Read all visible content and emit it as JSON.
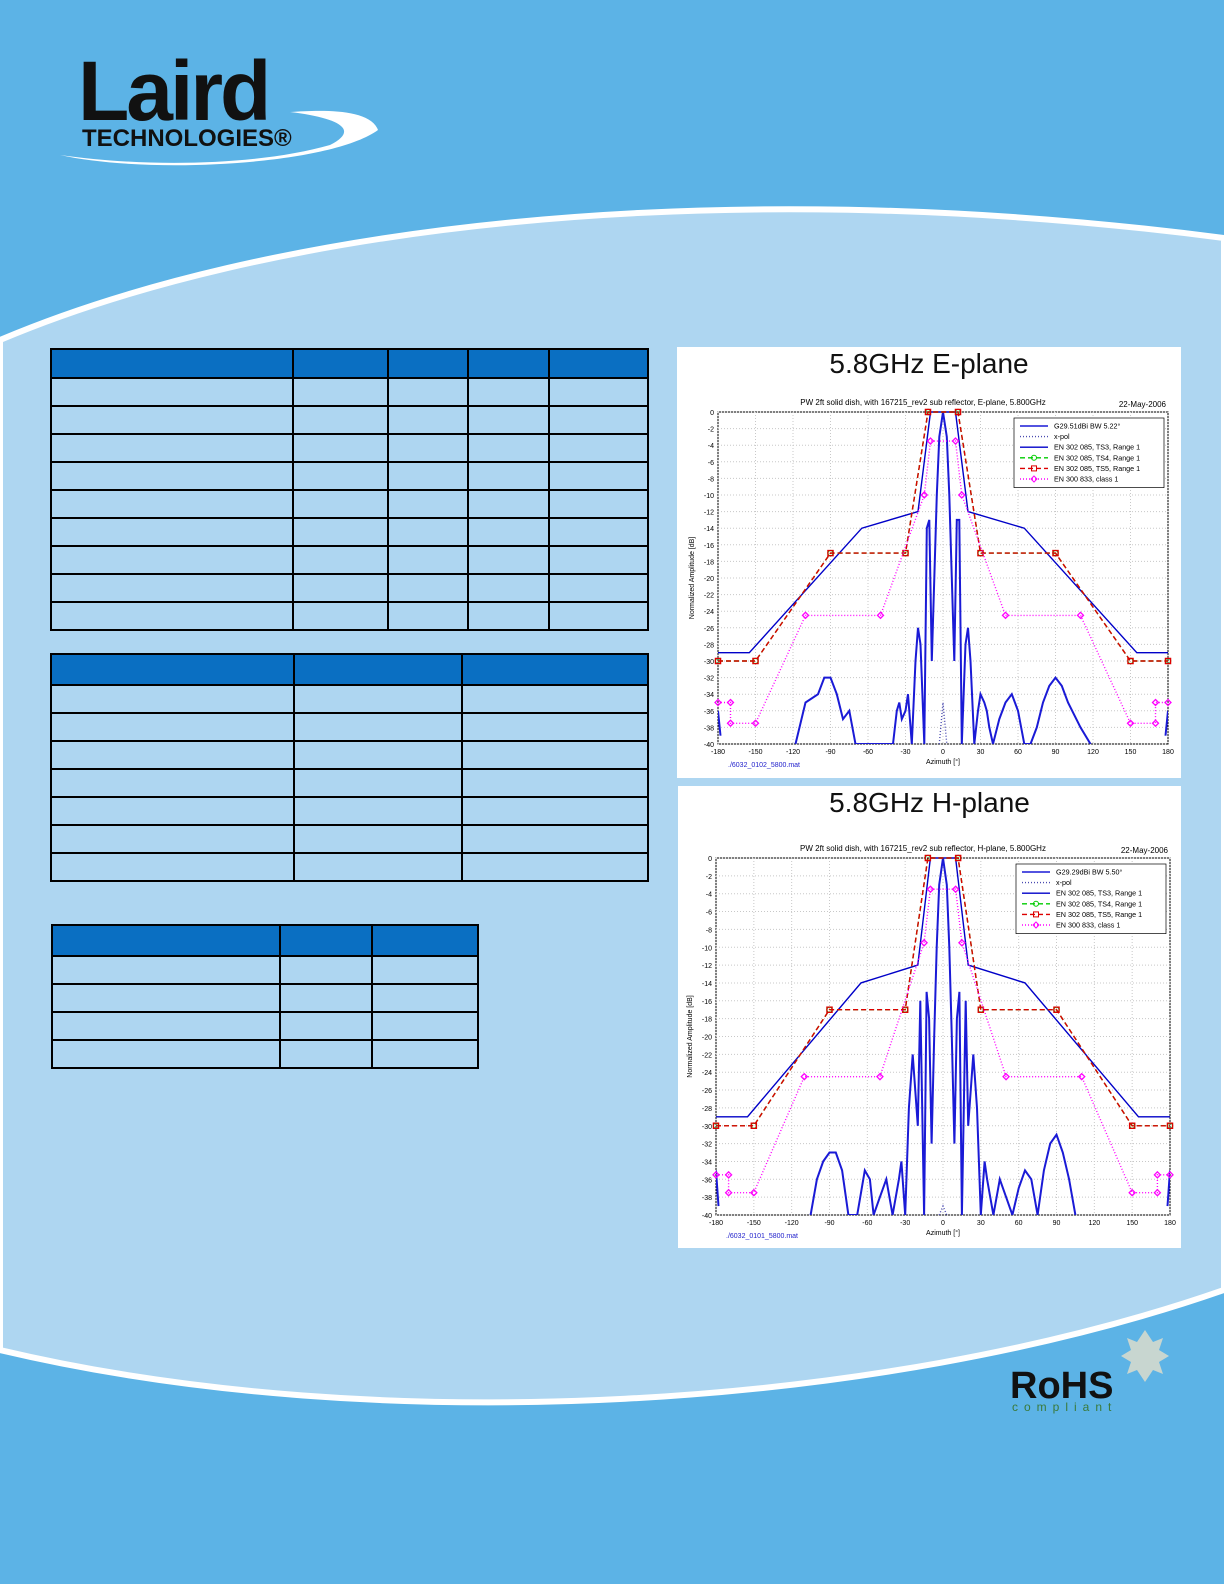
{
  "header": {
    "brand": "Laird",
    "tagline": "TECHNOLOGIES®"
  },
  "chart_data": [
    {
      "type": "line",
      "title": "5.8GHz E-plane",
      "subtitle": "PW 2ft solid dish, with 167215_rev2 sub reflector, E-plane,  5.800GHz",
      "date": "22-May-2006",
      "ylabel": "Normalized Amplitude [dB]",
      "xlabel": "Azimuth [°]",
      "source": "./6032_0102_5800.mat",
      "xlim": [
        -180,
        180
      ],
      "ylim": [
        -40,
        0
      ],
      "xticks": [
        -180,
        -150,
        -120,
        -90,
        -60,
        -30,
        0,
        30,
        60,
        90,
        120,
        150,
        180
      ],
      "yticks": [
        0,
        -2,
        -4,
        -6,
        -8,
        -10,
        -12,
        -14,
        -16,
        -18,
        -20,
        -22,
        -24,
        -26,
        -28,
        -30,
        -32,
        -34,
        -36,
        -38,
        -40
      ],
      "grid": true,
      "legend": "upper right",
      "series": [
        {
          "name": "G29.51dBi BW 5.22°",
          "color": "#1a1ad6",
          "style": "solid",
          "x": [
            -180,
            -178,
            -176,
            -118,
            -110,
            -100,
            -95,
            -90,
            -85,
            -80,
            -75,
            -70,
            -40,
            -37,
            -35,
            -33,
            -30,
            -28,
            -25,
            -22,
            -20,
            -18,
            -15,
            -13,
            -11,
            -9,
            -7,
            -5,
            -3,
            0,
            3,
            5,
            7,
            9,
            11,
            13,
            15,
            18,
            20,
            22,
            25,
            28,
            30,
            33,
            35,
            37,
            40,
            45,
            50,
            55,
            60,
            65,
            70,
            75,
            80,
            85,
            90,
            95,
            100,
            110,
            118,
            176,
            178,
            180
          ],
          "values": [
            -36,
            -39,
            null,
            -40,
            -35,
            -34,
            -32,
            -32,
            -34,
            -37,
            -36,
            -40,
            -40,
            -36,
            -35,
            -37,
            -36,
            -34,
            -40,
            -30,
            -26,
            -28,
            -40,
            -14,
            -13,
            -30,
            -20,
            -10,
            -3,
            0,
            -3,
            -10,
            -20,
            -30,
            -13,
            -13,
            -40,
            -28,
            -26,
            -30,
            -40,
            -36,
            -34,
            -35,
            -36,
            -38,
            -40,
            -37,
            -35,
            -34,
            -36,
            -40,
            -40,
            -38,
            -35,
            -33,
            -32,
            -33,
            -35,
            -38,
            -40,
            null,
            -39,
            -36
          ]
        },
        {
          "name": "x-pol",
          "color": "#4a4ab0",
          "style": "dotted",
          "x": [
            -3,
            0,
            3
          ],
          "values": [
            -40,
            -35,
            -40
          ]
        },
        {
          "name": "EN 302 085, TS3, Range 1",
          "color": "#0000c8",
          "style": "solid",
          "x": [
            -180,
            -155,
            -65,
            -20,
            -10,
            10,
            20,
            65,
            155,
            180
          ],
          "values": [
            -29,
            -29,
            -14,
            -12,
            0,
            0,
            -12,
            -14,
            -29,
            -29
          ]
        },
        {
          "name": "EN 302 085, TS4, Range 1",
          "color": "#00cc00",
          "style": "dashed",
          "marker": "circle",
          "x": [
            -180,
            -150,
            -90,
            -30,
            -12,
            12,
            30,
            90,
            150,
            180
          ],
          "values": [
            -30,
            -30,
            -17,
            -17,
            0,
            0,
            -17,
            -17,
            -30,
            -30
          ]
        },
        {
          "name": "EN 302 085, TS5, Range 1",
          "color": "#dd0000",
          "style": "dashed",
          "marker": "square",
          "x": [
            -180,
            -150,
            -90,
            -30,
            -12,
            12,
            30,
            90,
            150,
            180
          ],
          "values": [
            -30,
            -30,
            -17,
            -17,
            0,
            0,
            -17,
            -17,
            -30,
            -30
          ]
        },
        {
          "name": "EN 300 833, class 1",
          "color": "#ff00ff",
          "style": "dotted",
          "marker": "diamond",
          "x": [
            -180,
            -170,
            -170,
            -150,
            -110,
            -50,
            -15,
            -10,
            10,
            15,
            50,
            110,
            150,
            170,
            170,
            180
          ],
          "values": [
            -35,
            -35,
            -37.5,
            -37.5,
            -24.5,
            -24.5,
            -10,
            -3.5,
            -3.5,
            -10,
            -24.5,
            -24.5,
            -37.5,
            -37.5,
            -35,
            -35
          ]
        }
      ]
    },
    {
      "type": "line",
      "title": "5.8GHz H-plane",
      "subtitle": "PW 2ft solid dish, with 167215_rev2 sub reflector, H-plane,  5.800GHz",
      "date": "22-May-2006",
      "ylabel": "Normalized Amplitude [dB]",
      "xlabel": "Azimuth [°]",
      "source": "./6032_0101_5800.mat",
      "xlim": [
        -180,
        180
      ],
      "ylim": [
        -40,
        0
      ],
      "xticks": [
        -180,
        -150,
        -120,
        -90,
        -60,
        -30,
        0,
        30,
        60,
        90,
        120,
        150,
        180
      ],
      "yticks": [
        0,
        -2,
        -4,
        -6,
        -8,
        -10,
        -12,
        -14,
        -16,
        -18,
        -20,
        -22,
        -24,
        -26,
        -28,
        -30,
        -32,
        -34,
        -36,
        -38,
        -40
      ],
      "grid": true,
      "legend": "upper right",
      "series": [
        {
          "name": "G29.29dBi BW 5.50°",
          "color": "#1a1ad6",
          "style": "solid",
          "x": [
            -180,
            -178,
            -176,
            -105,
            -100,
            -95,
            -90,
            -85,
            -80,
            -75,
            -68,
            -62,
            -58,
            -55,
            -50,
            -45,
            -40,
            -35,
            -33,
            -30,
            -27,
            -24,
            -20,
            -18,
            -15,
            -13,
            -11,
            -9,
            -7,
            -5,
            -3,
            0,
            3,
            5,
            7,
            9,
            11,
            13,
            15,
            18,
            20,
            24,
            27,
            30,
            33,
            35,
            40,
            45,
            50,
            55,
            60,
            65,
            70,
            75,
            80,
            85,
            90,
            95,
            100,
            105,
            176,
            178,
            180
          ],
          "values": [
            -35,
            -39,
            null,
            -40,
            -36,
            -34,
            -33,
            -33,
            -35,
            -40,
            -40,
            -35,
            -36,
            -40,
            -38,
            -36,
            -40,
            -36,
            -34,
            -40,
            -28,
            -22,
            -30,
            -16,
            -40,
            -15,
            -18,
            -32,
            -20,
            -10,
            -3,
            0,
            -3,
            -10,
            -20,
            -32,
            -18,
            -15,
            -40,
            -16,
            -30,
            -22,
            -28,
            -40,
            -34,
            -36,
            -40,
            -36,
            -38,
            -40,
            -37,
            -35,
            -36,
            -40,
            -35,
            -32,
            -31,
            -33,
            -36,
            -40,
            null,
            -39,
            -35
          ]
        },
        {
          "name": "x-pol",
          "color": "#4a4ab0",
          "style": "dotted",
          "x": [
            -3,
            0,
            3
          ],
          "values": [
            -40,
            -39,
            -40
          ]
        },
        {
          "name": "EN 302 085, TS3, Range 1",
          "color": "#0000c8",
          "style": "solid",
          "x": [
            -180,
            -155,
            -65,
            -20,
            -10,
            10,
            20,
            65,
            155,
            180
          ],
          "values": [
            -29,
            -29,
            -14,
            -12,
            0,
            0,
            -12,
            -14,
            -29,
            -29
          ]
        },
        {
          "name": "EN 302 085, TS4, Range 1",
          "color": "#00cc00",
          "style": "dashed",
          "marker": "circle",
          "x": [
            -180,
            -150,
            -90,
            -30,
            -12,
            12,
            30,
            90,
            150,
            180
          ],
          "values": [
            -30,
            -30,
            -17,
            -17,
            0,
            0,
            -17,
            -17,
            -30,
            -30
          ]
        },
        {
          "name": "EN 302 085, TS5, Range 1",
          "color": "#dd0000",
          "style": "dashed",
          "marker": "square",
          "x": [
            -180,
            -150,
            -90,
            -30,
            -12,
            12,
            30,
            90,
            150,
            180
          ],
          "values": [
            -30,
            -30,
            -17,
            -17,
            0,
            0,
            -17,
            -17,
            -30,
            -30
          ]
        },
        {
          "name": "EN 300 833, class 1",
          "color": "#ff00ff",
          "style": "dotted",
          "marker": "diamond",
          "x": [
            -180,
            -170,
            -170,
            -150,
            -110,
            -50,
            -15,
            -10,
            10,
            15,
            50,
            110,
            150,
            170,
            170,
            180
          ],
          "values": [
            -35.5,
            -35.5,
            -37.5,
            -37.5,
            -24.5,
            -24.5,
            -9.5,
            -3.5,
            -3.5,
            -9.5,
            -24.5,
            -24.5,
            -37.5,
            -37.5,
            -35.5,
            -35.5
          ]
        }
      ]
    }
  ],
  "footer": {
    "rohs": "RoHS",
    "rohs_note": "compliant"
  }
}
